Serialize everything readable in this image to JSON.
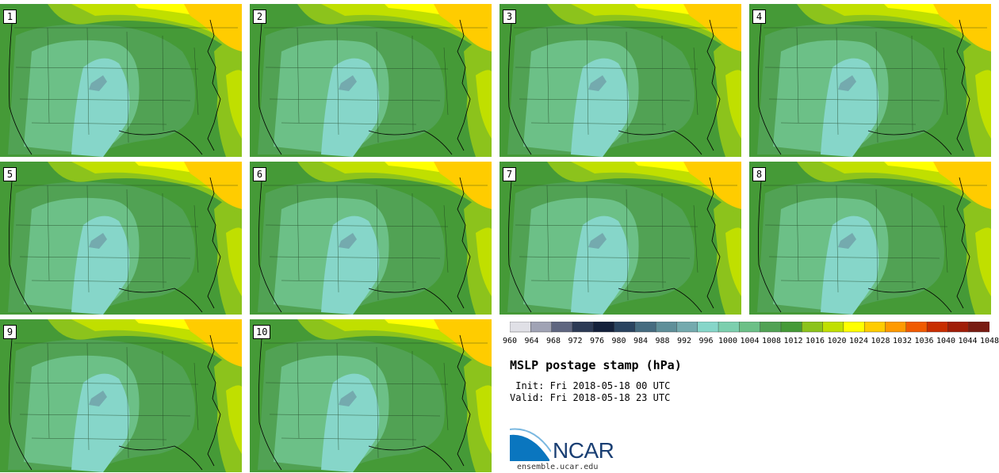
{
  "title": "MSLP postage stamp (hPa)",
  "init_text": " Init: Fri 2018-05-18 00 UTC",
  "valid_text": "Valid: Fri 2018-05-18 23 UTC",
  "logo_text": "NCAR",
  "url": "ensemble.ucar.edu",
  "members": [
    "1",
    "2",
    "3",
    "4",
    "5",
    "6",
    "7",
    "8",
    "9",
    "10"
  ],
  "colorbar": {
    "ticks": [
      "960",
      "964",
      "968",
      "972",
      "976",
      "980",
      "984",
      "988",
      "992",
      "996",
      "1000",
      "1004",
      "1008",
      "1012",
      "1016",
      "1020",
      "1024",
      "1028",
      "1032",
      "1036",
      "1040",
      "1044",
      "1048"
    ],
    "colors": [
      "#e0e0e6",
      "#a0a3b5",
      "#5f6680",
      "#2c3a55",
      "#14213b",
      "#2a4460",
      "#466c80",
      "#5f8f99",
      "#74aaae",
      "#86d6c9",
      "#7ccfae",
      "#6cc087",
      "#51a254",
      "#459a37",
      "#8cc31c",
      "#c0df00",
      "#ffff00",
      "#ffcc00",
      "#ff9a00",
      "#f05a00",
      "#c82e00",
      "#a01e08",
      "#781c12"
    ]
  }
}
